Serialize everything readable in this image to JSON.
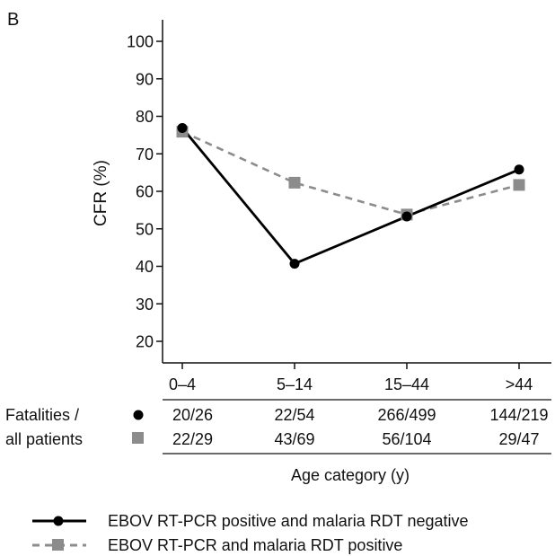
{
  "panel_label": "B",
  "chart_data": {
    "type": "line",
    "title": "",
    "xlabel": "Age category (y)",
    "ylabel": "CFR (%)",
    "ylim": [
      15,
      103
    ],
    "yticks": [
      20,
      30,
      40,
      50,
      60,
      70,
      80,
      90,
      100
    ],
    "categories": [
      "0–4",
      "5–14",
      "15–44",
      ">44"
    ],
    "series": [
      {
        "name": "EBOV RT-PCR positive and malaria RDT negative",
        "values": [
          76.9,
          40.7,
          53.3,
          65.8
        ],
        "color": "#000000",
        "marker": "circle",
        "line_style": "solid"
      },
      {
        "name": "EBOV RT-PCR and malaria RDT positive",
        "values": [
          75.9,
          62.3,
          53.8,
          61.7
        ],
        "color": "#8c8c8c",
        "marker": "square",
        "line_style": "dashed"
      }
    ],
    "table": {
      "row_label_line1": "Fatalities /",
      "row_label_line2": "all patients",
      "rows": [
        [
          "20/26",
          "22/54",
          "266/499",
          "144/219"
        ],
        [
          "22/29",
          "43/69",
          "56/104",
          "29/47"
        ]
      ]
    },
    "legend_position": "bottom"
  }
}
